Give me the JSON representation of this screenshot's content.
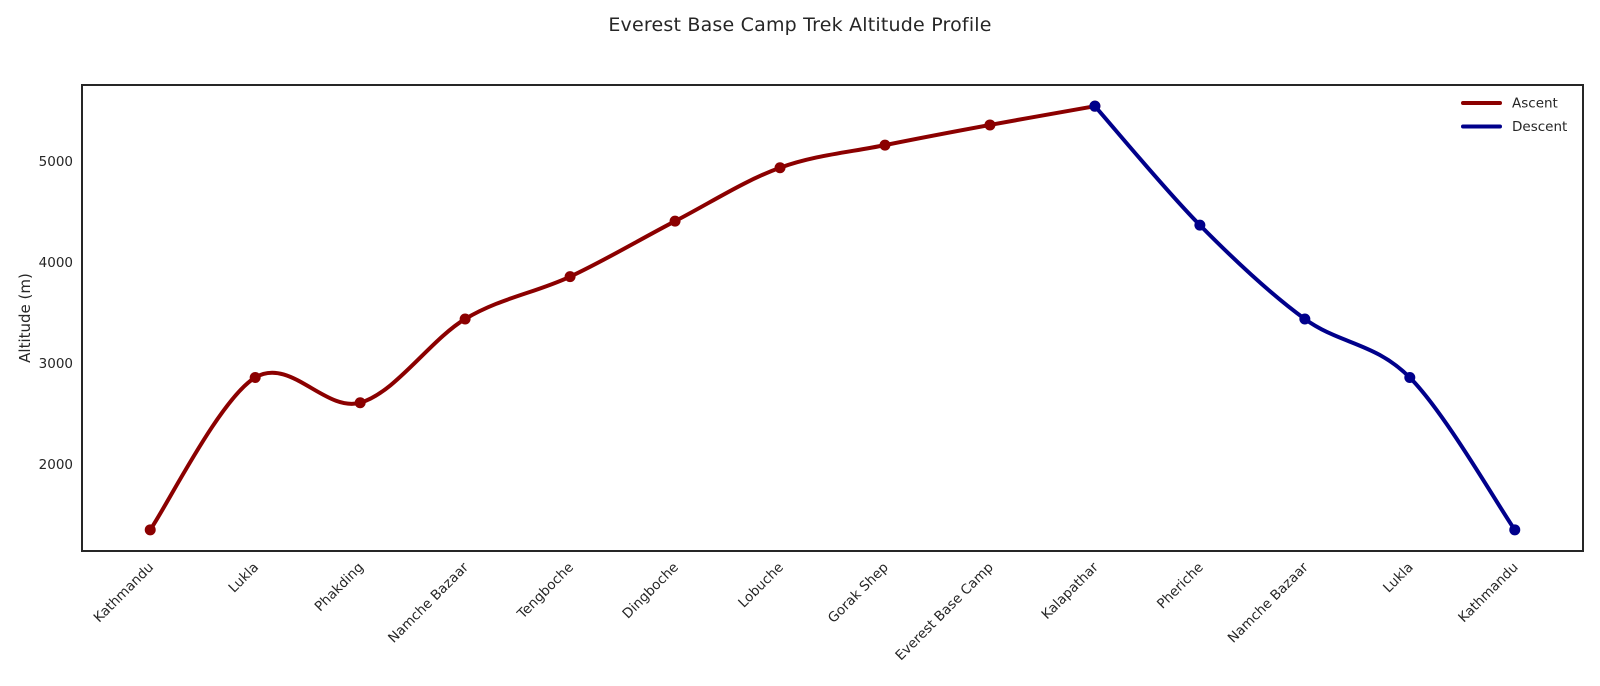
{
  "chart_data": {
    "type": "line",
    "title": "Everest Base Camp Trek Altitude Profile",
    "categories": [
      "Kathmandu",
      "Lukla",
      "Phakding",
      "Namche Bazaar",
      "Tengboche",
      "Dingboche",
      "Lobuche",
      "Gorak Shep",
      "Everest Base Camp",
      "Kalapathar",
      "Pheriche",
      "Namche Bazaar",
      "Lukla",
      "Kathmandu"
    ],
    "series": [
      {
        "name": "Ascent",
        "color": "#8B0000",
        "start_index": 0,
        "values": [
          1350,
          2860,
          2610,
          3440,
          3860,
          4410,
          4940,
          5164,
          5364,
          5550
        ]
      },
      {
        "name": "Descent",
        "color": "#00008B",
        "start_index": 9,
        "values": [
          5550,
          4371,
          3440,
          2860,
          1350
        ]
      }
    ],
    "xlabel": "",
    "ylabel": "Altitude (m)",
    "yticks": [
      2000,
      3000,
      4000,
      5000
    ],
    "ylim": [
      1140,
      5760
    ],
    "x_margin": 0.65,
    "grid": false,
    "smooth": true,
    "line_width": 4,
    "marker_radius": 5.5,
    "legend": {
      "position": "upper right",
      "entries": [
        "Ascent",
        "Descent"
      ]
    },
    "axis_color": "#262626",
    "text_color": "#262626",
    "background": "#ffffff"
  }
}
